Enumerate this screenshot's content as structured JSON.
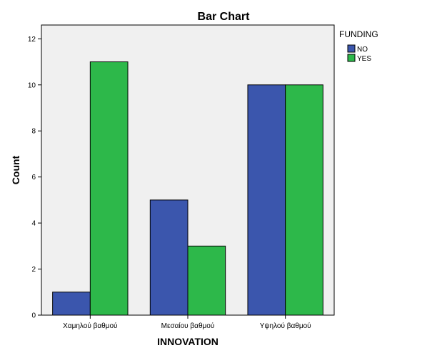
{
  "chart_data": {
    "type": "bar",
    "title": "Bar Chart",
    "xlabel": "INNOVATION",
    "ylabel": "Count",
    "categories": [
      "Χαμηλού βαθμού",
      "Μεσαίου βαθμού",
      "Υψηλού βαθμού"
    ],
    "series": [
      {
        "name": "NO",
        "values": [
          1,
          5,
          10
        ],
        "color": "#3b56ad"
      },
      {
        "name": "YES",
        "values": [
          11,
          3,
          10
        ],
        "color": "#2db84a"
      }
    ],
    "ylim": [
      0,
      12.6
    ],
    "yticks": [
      0,
      2,
      4,
      6,
      8,
      10,
      12
    ],
    "grid": false,
    "legend": {
      "title": "FUNDING",
      "placement": "top-right outside"
    },
    "plot_background": "#f0f0f0"
  }
}
